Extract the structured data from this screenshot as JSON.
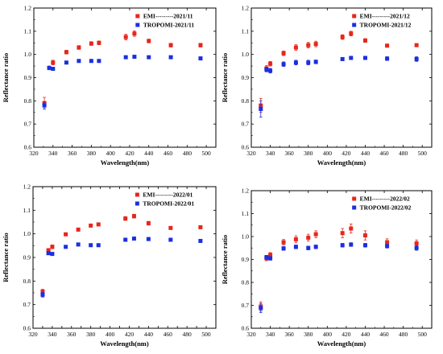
{
  "figure": {
    "title": ""
  },
  "chart_data": [
    {
      "type": "scatter",
      "xlabel": "Wavelength(nm)",
      "ylabel": "Reflectance ratio",
      "xlim": [
        320,
        510
      ],
      "ylim": [
        0.6,
        1.2
      ],
      "xticks": [
        "320",
        "340",
        "360",
        "380",
        "400",
        "420",
        "440",
        "460",
        "480",
        "500"
      ],
      "yticks": [
        "0.6",
        "0.7",
        "0.8",
        "0.9",
        "1.0",
        "1.1",
        "1.2"
      ],
      "legend_position": "top-right",
      "series": [
        {
          "name": "EMI---------2021/11",
          "color": "#e8261c",
          "x": [
            331,
            340,
            354,
            367,
            380,
            388,
            416,
            425,
            440,
            463,
            494
          ],
          "y": [
            0.79,
            0.965,
            1.01,
            1.03,
            1.047,
            1.05,
            1.075,
            1.09,
            1.058,
            1.04,
            1.04
          ],
          "err": [
            0.025,
            0.01,
            0.008,
            0.008,
            0.008,
            0.008,
            0.012,
            0.012,
            0.008,
            0.008,
            0.008
          ]
        },
        {
          "name": "TROPOMI-2021/11",
          "color": "#1b2fe0",
          "x": [
            331,
            336,
            340,
            354,
            367,
            380,
            388,
            416,
            425,
            440,
            463,
            494
          ],
          "y": [
            0.78,
            0.942,
            0.938,
            0.965,
            0.972,
            0.972,
            0.972,
            0.988,
            0.99,
            0.988,
            0.988,
            0.983
          ],
          "err": [
            0.015,
            0.008,
            0.006,
            0.004,
            0.004,
            0.004,
            0.004,
            0.004,
            0.004,
            0.004,
            0.004,
            0.004
          ]
        }
      ]
    },
    {
      "type": "scatter",
      "xlabel": "Wavelength(nm)",
      "ylabel": "Reflectance ratio",
      "xlim": [
        320,
        510
      ],
      "ylim": [
        0.6,
        1.2
      ],
      "xticks": [
        "320",
        "340",
        "360",
        "380",
        "400",
        "420",
        "440",
        "460",
        "480",
        "500"
      ],
      "yticks": [
        "0.6",
        "0.7",
        "0.8",
        "0.9",
        "1.0",
        "1.1",
        "1.2"
      ],
      "legend_position": "top-right",
      "series": [
        {
          "name": "EMI---------2021/12",
          "color": "#e8261c",
          "x": [
            330,
            336,
            340,
            354,
            367,
            380,
            388,
            416,
            425,
            440,
            463,
            494
          ],
          "y": [
            0.78,
            0.94,
            0.96,
            1.005,
            1.03,
            1.04,
            1.045,
            1.075,
            1.09,
            1.06,
            1.038,
            1.04
          ],
          "err": [
            0.03,
            0.012,
            0.01,
            0.01,
            0.012,
            0.012,
            0.012,
            0.01,
            0.01,
            0.008,
            0.006,
            0.006
          ]
        },
        {
          "name": "TROPOMI-2021/12",
          "color": "#1b2fe0",
          "x": [
            330,
            336,
            340,
            354,
            367,
            380,
            388,
            416,
            425,
            440,
            463,
            494
          ],
          "y": [
            0.765,
            0.935,
            0.93,
            0.958,
            0.965,
            0.965,
            0.968,
            0.98,
            0.985,
            0.985,
            0.982,
            0.98
          ],
          "err": [
            0.035,
            0.01,
            0.01,
            0.01,
            0.01,
            0.01,
            0.008,
            0.006,
            0.006,
            0.006,
            0.008,
            0.01
          ]
        }
      ]
    },
    {
      "type": "scatter",
      "xlabel": "Wavelength(nm)",
      "ylabel": "Reflectance ratio",
      "xlim": [
        320,
        510
      ],
      "ylim": [
        0.6,
        1.2
      ],
      "xticks": [
        "320",
        "330",
        "340",
        "350",
        "360",
        "370",
        "380",
        "390",
        "400",
        "410",
        "420",
        "430",
        "440",
        "450",
        "460",
        "470",
        "480",
        "490",
        "500"
      ],
      "xticks_labeled": [
        "320",
        "340",
        "360",
        "380",
        "400",
        "420",
        "440",
        "460",
        "480",
        "500"
      ],
      "yticks": [
        "0.6",
        "0.7",
        "0.8",
        "0.9",
        "1.0",
        "1.1",
        "1.2"
      ],
      "legend_position": "top-right",
      "series": [
        {
          "name": "EMI---------2022/01",
          "color": "#e8261c",
          "x": [
            330,
            336,
            340,
            354,
            367,
            380,
            388,
            416,
            425,
            440,
            463,
            494
          ],
          "y": [
            0.755,
            0.93,
            0.945,
            0.998,
            1.018,
            1.035,
            1.04,
            1.065,
            1.075,
            1.045,
            1.025,
            1.028
          ],
          "err": [
            0.01,
            0.008,
            0.008,
            0.006,
            0.006,
            0.006,
            0.006,
            0.008,
            0.008,
            0.008,
            0.006,
            0.006
          ]
        },
        {
          "name": "TROPOMI-2022/01",
          "color": "#1b2fe0",
          "x": [
            330,
            336,
            340,
            354,
            367,
            380,
            388,
            416,
            425,
            440,
            463,
            494
          ],
          "y": [
            0.742,
            0.918,
            0.915,
            0.945,
            0.955,
            0.952,
            0.952,
            0.975,
            0.98,
            0.978,
            0.975,
            0.97
          ],
          "err": [
            0.01,
            0.006,
            0.006,
            0.006,
            0.006,
            0.006,
            0.006,
            0.004,
            0.004,
            0.004,
            0.004,
            0.004
          ]
        }
      ]
    },
    {
      "type": "scatter",
      "xlabel": "Wavelength(nm)",
      "ylabel": "Reflectance ratio",
      "xlim": [
        320,
        510
      ],
      "ylim": [
        0.6,
        1.2
      ],
      "xticks": [
        "320",
        "340",
        "360",
        "380",
        "400",
        "420",
        "440",
        "460",
        "480",
        "500"
      ],
      "yticks": [
        "0.6",
        "0.7",
        "0.8",
        "0.9",
        "1.0",
        "1.1",
        "1.2"
      ],
      "legend_position": "top-right",
      "series": [
        {
          "name": "EMI---------2022/02",
          "color": "#e8261c",
          "x": [
            330,
            336,
            340,
            354,
            367,
            380,
            388,
            416,
            425,
            440,
            463,
            494
          ],
          "y": [
            0.695,
            0.905,
            0.92,
            0.975,
            0.988,
            0.995,
            1.01,
            1.015,
            1.035,
            1.005,
            0.975,
            0.97
          ],
          "err": [
            0.02,
            0.01,
            0.01,
            0.012,
            0.015,
            0.015,
            0.015,
            0.02,
            0.02,
            0.02,
            0.015,
            0.015
          ]
        },
        {
          "name": "TROPOMI-2022/02",
          "color": "#1b2fe0",
          "x": [
            330,
            336,
            340,
            354,
            367,
            380,
            388,
            416,
            425,
            440,
            463,
            494
          ],
          "y": [
            0.688,
            0.91,
            0.905,
            0.948,
            0.955,
            0.95,
            0.955,
            0.962,
            0.965,
            0.962,
            0.958,
            0.95
          ],
          "err": [
            0.02,
            0.008,
            0.008,
            0.008,
            0.008,
            0.008,
            0.008,
            0.008,
            0.008,
            0.008,
            0.008,
            0.01
          ]
        }
      ]
    }
  ]
}
